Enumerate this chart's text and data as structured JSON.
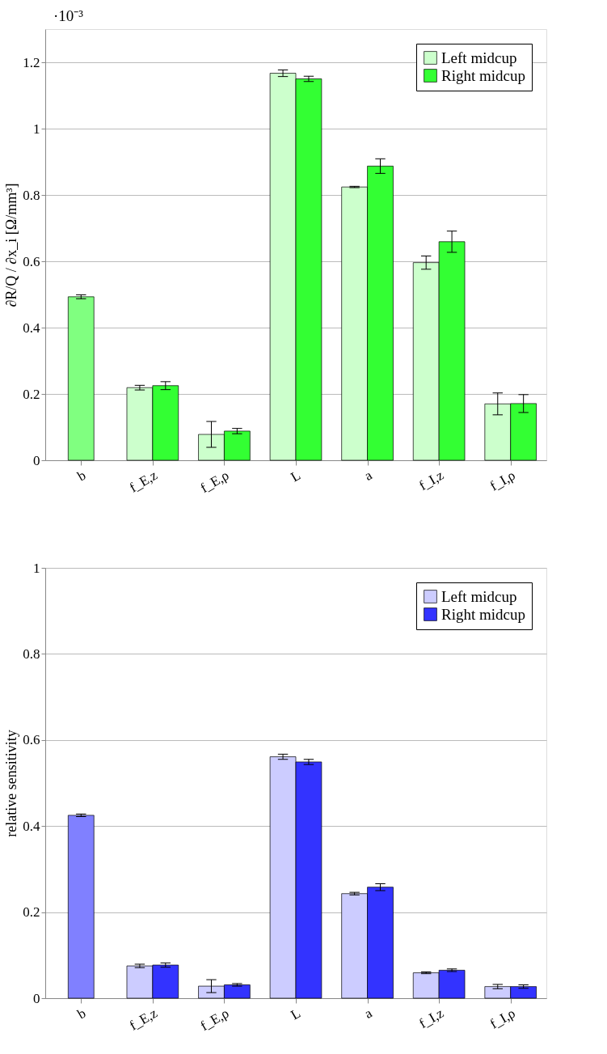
{
  "chart_data": [
    {
      "type": "bar",
      "ylabel": "∂R/Q / ∂x_i [Ω/mm³]",
      "annotations": [
        "·10⁻³"
      ],
      "categories": [
        "b",
        "f_E,z",
        "f_E,ρ",
        "L",
        "a",
        "f_I,z",
        "f_I,ρ"
      ],
      "ylim": [
        0,
        1.3
      ],
      "yticks": [
        0,
        0.2,
        0.4,
        0.6,
        0.8,
        1,
        1.2
      ],
      "grid": "y",
      "legend": "top right",
      "series": [
        {
          "name": "Left midcup",
          "color": "#ccffcc",
          "values": [
            null,
            0.219,
            0.078,
            1.167,
            0.824,
            0.596,
            0.17
          ],
          "errors": [
            null,
            0.007,
            0.039,
            0.01,
            0.002,
            0.02,
            0.033
          ]
        },
        {
          "color": "#80ff80",
          "values": [
            0.493,
            null,
            null,
            null,
            null,
            null,
            null
          ],
          "errors": [
            0.006,
            null,
            null,
            null,
            null,
            null,
            null
          ]
        },
        {
          "name": "Right midcup",
          "color": "#33ff33",
          "values": [
            null,
            0.225,
            0.088,
            1.15,
            0.887,
            0.659,
            0.171
          ],
          "errors": [
            null,
            0.012,
            0.008,
            0.008,
            0.022,
            0.032,
            0.027
          ]
        }
      ]
    },
    {
      "type": "bar",
      "ylabel": "relative sensitivity",
      "categories": [
        "b",
        "f_E,z",
        "f_E,ρ",
        "L",
        "a",
        "f_I,z",
        "f_I,ρ"
      ],
      "ylim": [
        0,
        1
      ],
      "yticks": [
        0,
        0.2,
        0.4,
        0.6,
        0.8,
        1
      ],
      "grid": "y",
      "legend": "top right",
      "series": [
        {
          "name": "Left midcup",
          "color": "#ccccff",
          "values": [
            null,
            0.075,
            0.028,
            0.561,
            0.243,
            0.059,
            0.027
          ],
          "errors": [
            null,
            0.004,
            0.015,
            0.006,
            0.003,
            0.002,
            0.005
          ]
        },
        {
          "color": "#8080ff",
          "values": [
            0.425,
            null,
            null,
            null,
            null,
            null,
            null
          ],
          "errors": [
            0.003,
            null,
            null,
            null,
            null,
            null,
            null
          ]
        },
        {
          "name": "Right midcup",
          "color": "#3333ff",
          "values": [
            null,
            0.077,
            0.031,
            0.549,
            0.258,
            0.065,
            0.027
          ],
          "errors": [
            null,
            0.005,
            0.003,
            0.006,
            0.008,
            0.003,
            0.004
          ]
        }
      ]
    }
  ]
}
